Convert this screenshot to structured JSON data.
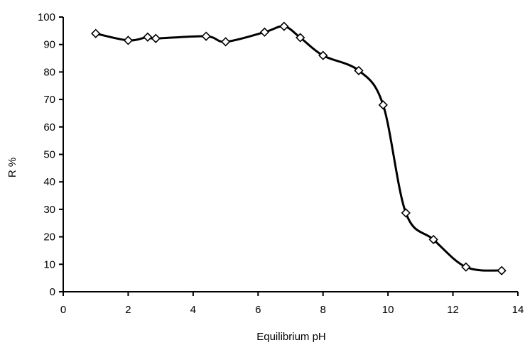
{
  "chart_data": {
    "type": "line",
    "title": "",
    "xlabel": "Equilibrium pH",
    "ylabel": "R %",
    "xlim": [
      0,
      14
    ],
    "ylim": [
      0,
      100
    ],
    "xticks": [
      "0",
      "2",
      "4",
      "6",
      "8",
      "10",
      "12",
      "14"
    ],
    "yticks": [
      "0",
      "10",
      "20",
      "30",
      "40",
      "50",
      "60",
      "70",
      "80",
      "90",
      "100"
    ],
    "grid": false,
    "legend": "none",
    "smoothed": true,
    "marker": "open-diamond",
    "line_color": "#000000",
    "series": [
      {
        "x": [
          1.0,
          2.0,
          2.6,
          2.85,
          4.4,
          5.0,
          6.2,
          6.8,
          7.3,
          8.0,
          9.1,
          9.85,
          10.55,
          11.4,
          12.4,
          13.5
        ],
        "y": [
          94,
          91.5,
          92.7,
          92.2,
          93,
          91,
          94.5,
          96.6,
          92.5,
          86,
          80.5,
          68,
          28.7,
          19,
          9,
          7.7
        ]
      }
    ]
  }
}
